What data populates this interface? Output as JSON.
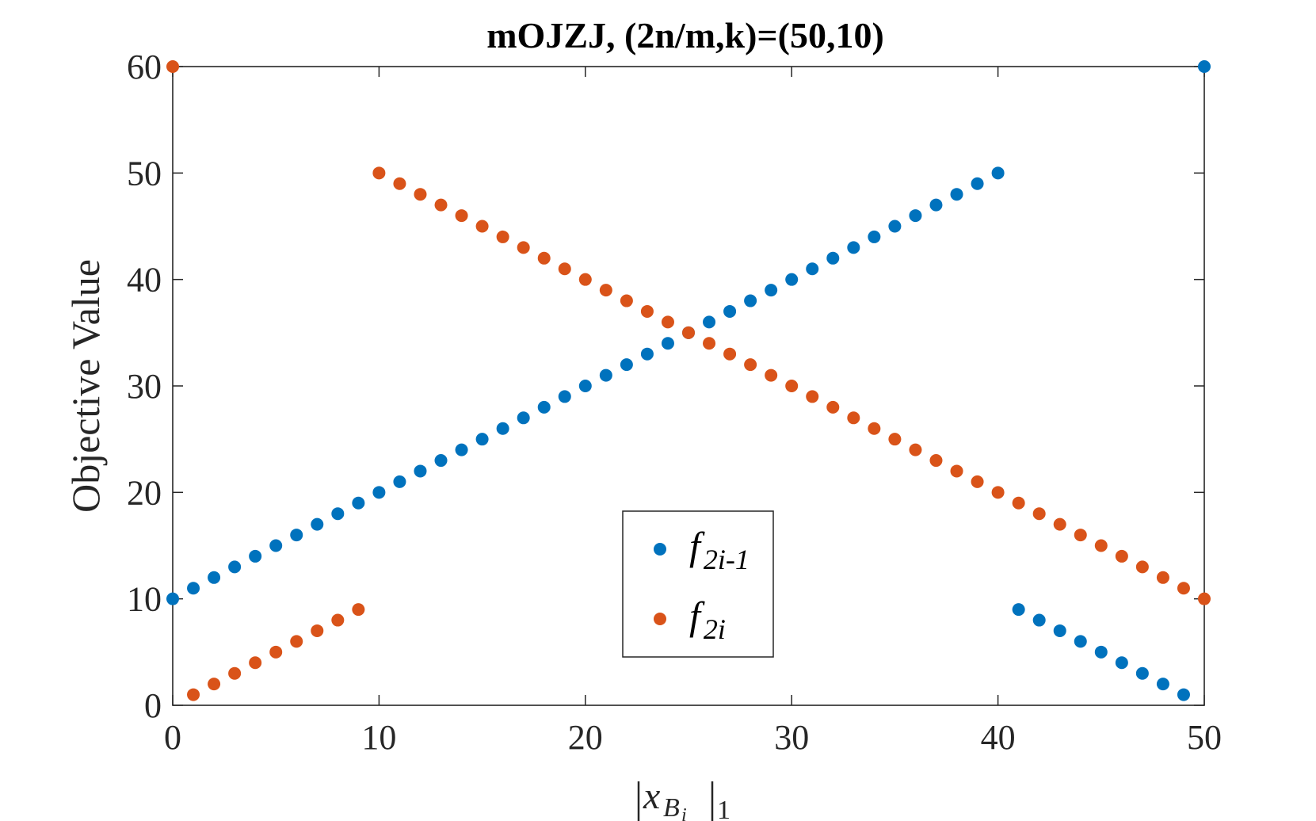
{
  "chart_data": {
    "type": "scatter",
    "title": "mOJZJ, (2n/m,k)=(50,10)",
    "xlabel": "|x_{B_i}|_1",
    "ylabel": "Objective Value",
    "xlim": [
      0,
      50
    ],
    "ylim": [
      0,
      60
    ],
    "xticks": [
      0,
      10,
      20,
      30,
      40,
      50
    ],
    "yticks": [
      0,
      10,
      20,
      30,
      40,
      50,
      60
    ],
    "grid": false,
    "legend_position": "lower-center",
    "series": [
      {
        "name": "f_{2i-1}",
        "legend_base": "f",
        "legend_sub": "2i-1",
        "color": "#0072BD",
        "x": [
          0,
          1,
          2,
          3,
          4,
          5,
          6,
          7,
          8,
          9,
          10,
          11,
          12,
          13,
          14,
          15,
          16,
          17,
          18,
          19,
          20,
          21,
          22,
          23,
          24,
          25,
          26,
          27,
          28,
          29,
          30,
          31,
          32,
          33,
          34,
          35,
          36,
          37,
          38,
          39,
          40,
          41,
          42,
          43,
          44,
          45,
          46,
          47,
          48,
          49,
          50
        ],
        "y": [
          10,
          11,
          12,
          13,
          14,
          15,
          16,
          17,
          18,
          19,
          20,
          21,
          22,
          23,
          24,
          25,
          26,
          27,
          28,
          29,
          30,
          31,
          32,
          33,
          34,
          35,
          36,
          37,
          38,
          39,
          40,
          41,
          42,
          43,
          44,
          45,
          46,
          47,
          48,
          49,
          50,
          9,
          8,
          7,
          6,
          5,
          4,
          3,
          2,
          1,
          60
        ]
      },
      {
        "name": "f_{2i}",
        "legend_base": "f",
        "legend_sub": "2i",
        "color": "#D95319",
        "x": [
          0,
          1,
          2,
          3,
          4,
          5,
          6,
          7,
          8,
          9,
          10,
          11,
          12,
          13,
          14,
          15,
          16,
          17,
          18,
          19,
          20,
          21,
          22,
          23,
          24,
          25,
          26,
          27,
          28,
          29,
          30,
          31,
          32,
          33,
          34,
          35,
          36,
          37,
          38,
          39,
          40,
          41,
          42,
          43,
          44,
          45,
          46,
          47,
          48,
          49,
          50
        ],
        "y": [
          60,
          1,
          2,
          3,
          4,
          5,
          6,
          7,
          8,
          9,
          50,
          49,
          48,
          47,
          46,
          45,
          44,
          43,
          42,
          41,
          40,
          39,
          38,
          37,
          36,
          35,
          34,
          33,
          32,
          31,
          30,
          29,
          28,
          27,
          26,
          25,
          24,
          23,
          22,
          21,
          20,
          19,
          18,
          17,
          16,
          15,
          14,
          13,
          12,
          11,
          10
        ]
      }
    ]
  }
}
